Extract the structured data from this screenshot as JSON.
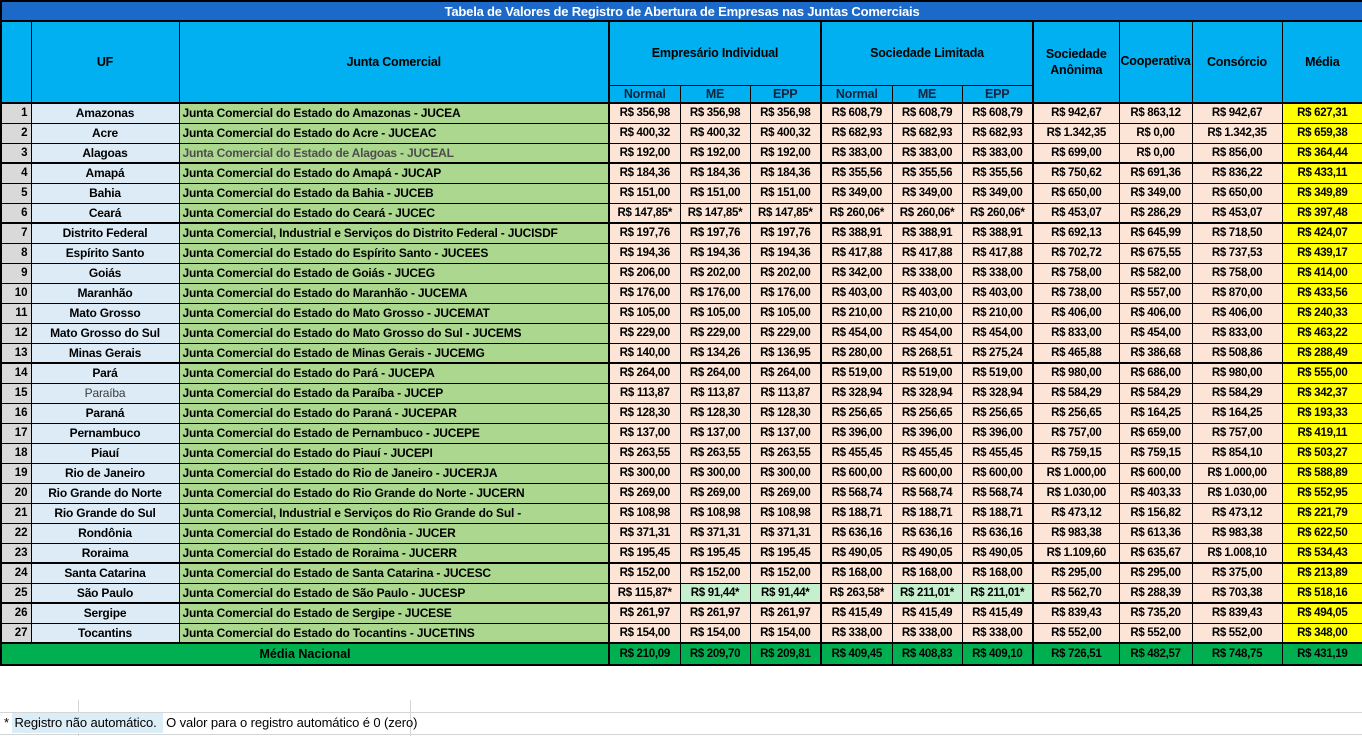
{
  "title": "Tabela de Valores de Registro de Abertura de Empresas nas Juntas Comerciais",
  "colors": {
    "title_bg": "#1b69c8",
    "header_bg": "#00b0f0",
    "rownum_bg": "#d9d9d9",
    "uf_bg": "#ddebf7",
    "junta_bg": "#acd78f",
    "value_bg": "#fce4d6",
    "media_bg": "#ffff00",
    "sp_green_bg": "#c6efce",
    "national_bg": "#00b050",
    "footnote_highlight_bg": "#dbedf7"
  },
  "table": {
    "headers": {
      "uf": "UF",
      "junta": "Junta Comercial",
      "group_empresario_individual": "Empresário Individual",
      "group_sociedade_limitada": "Sociedade Limitada",
      "sub_normal": "Normal",
      "sub_me": "ME",
      "sub_epp": "EPP",
      "sociedade_anonima": "Sociedade Anônima",
      "cooperativa": "Cooperativa",
      "consorcio": "Consórcio",
      "media": "Média"
    },
    "rows": [
      {
        "n": "1",
        "uf": "Amazonas",
        "junta": "Junta Comercial do Estado do Amazonas - JUCEA",
        "values": [
          "R$ 356,98",
          "R$ 356,98",
          "R$ 356,98",
          "R$ 608,79",
          "R$ 608,79",
          "R$ 608,79",
          "R$ 942,67",
          "R$ 863,12",
          "R$ 942,67",
          "R$ 627,31"
        ]
      },
      {
        "n": "2",
        "uf": "Acre",
        "junta": "Junta Comercial do Estado do Acre - JUCEAC",
        "values": [
          "R$ 400,32",
          "R$ 400,32",
          "R$ 400,32",
          "R$ 682,93",
          "R$ 682,93",
          "R$ 682,93",
          "R$ 1.342,35",
          "R$ 0,00",
          "R$ 1.342,35",
          "R$ 659,38"
        ]
      },
      {
        "n": "3",
        "uf": "Alagoas",
        "junta": "Junta Comercial do Estado de Alagoas - JUCEAL",
        "junta_muted": true,
        "thick": true,
        "values": [
          "R$ 192,00",
          "R$ 192,00",
          "R$ 192,00",
          "R$ 383,00",
          "R$ 383,00",
          "R$ 383,00",
          "R$ 699,00",
          "R$ 0,00",
          "R$ 856,00",
          "R$ 364,44"
        ]
      },
      {
        "n": "4",
        "uf": "Amapá",
        "junta": "Junta Comercial do Estado do Amapá - JUCAP",
        "values": [
          "R$ 184,36",
          "R$ 184,36",
          "R$ 184,36",
          "R$ 355,56",
          "R$ 355,56",
          "R$ 355,56",
          "R$ 750,62",
          "R$ 691,36",
          "R$ 836,22",
          "R$ 433,11"
        ]
      },
      {
        "n": "5",
        "uf": "Bahia",
        "junta": "Junta Comercial do Estado da Bahia - JUCEB",
        "values": [
          "R$ 151,00",
          "R$ 151,00",
          "R$ 151,00",
          "R$ 349,00",
          "R$ 349,00",
          "R$ 349,00",
          "R$ 650,00",
          "R$ 349,00",
          "R$ 650,00",
          "R$ 349,89"
        ]
      },
      {
        "n": "6",
        "uf": "Ceará",
        "junta": "Junta Comercial do Estado do Ceará - JUCEC",
        "thick": true,
        "values": [
          "R$ 147,85*",
          "R$ 147,85*",
          "R$ 147,85*",
          "R$ 260,06*",
          "R$ 260,06*",
          "R$ 260,06*",
          "R$ 453,07",
          "R$ 286,29",
          "R$ 453,07",
          "R$ 397,48"
        ]
      },
      {
        "n": "7",
        "uf": "Distrito Federal",
        "junta": "Junta Comercial, Industrial e Serviços do Distrito Federal - JUCISDF",
        "values": [
          "R$ 197,76",
          "R$ 197,76",
          "R$ 197,76",
          "R$ 388,91",
          "R$ 388,91",
          "R$ 388,91",
          "R$ 692,13",
          "R$ 645,99",
          "R$ 718,50",
          "R$ 424,07"
        ]
      },
      {
        "n": "8",
        "uf": "Espírito Santo",
        "junta": "Junta Comercial do Estado do Espírito Santo - JUCEES",
        "values": [
          "R$ 194,36",
          "R$ 194,36",
          "R$ 194,36",
          "R$ 417,88",
          "R$ 417,88",
          "R$ 417,88",
          "R$ 702,72",
          "R$ 675,55",
          "R$ 737,53",
          "R$ 439,17"
        ]
      },
      {
        "n": "9",
        "uf": "Goiás",
        "junta": "Junta Comercial do Estado de Goiás - JUCEG",
        "values": [
          "R$ 206,00",
          "R$ 202,00",
          "R$ 202,00",
          "R$ 342,00",
          "R$ 338,00",
          "R$ 338,00",
          "R$ 758,00",
          "R$ 582,00",
          "R$ 758,00",
          "R$ 414,00"
        ]
      },
      {
        "n": "10",
        "uf": "Maranhão",
        "junta": "Junta Comercial do Estado do Maranhão - JUCEMA",
        "values": [
          "R$ 176,00",
          "R$ 176,00",
          "R$ 176,00",
          "R$ 403,00",
          "R$ 403,00",
          "R$ 403,00",
          "R$ 738,00",
          "R$ 557,00",
          "R$ 870,00",
          "R$ 433,56"
        ]
      },
      {
        "n": "11",
        "uf": "Mato Grosso",
        "junta": "Junta Comercial do Estado do Mato Grosso - JUCEMAT",
        "values": [
          "R$ 105,00",
          "R$ 105,00",
          "R$ 105,00",
          "R$ 210,00",
          "R$ 210,00",
          "R$ 210,00",
          "R$ 406,00",
          "R$ 406,00",
          "R$ 406,00",
          "R$ 240,33"
        ]
      },
      {
        "n": "12",
        "uf": "Mato Grosso do Sul",
        "junta": "Junta Comercial do Estado do Mato Grosso do Sul - JUCEMS",
        "values": [
          "R$ 229,00",
          "R$ 229,00",
          "R$ 229,00",
          "R$ 454,00",
          "R$ 454,00",
          "R$ 454,00",
          "R$ 833,00",
          "R$ 454,00",
          "R$ 833,00",
          "R$ 463,22"
        ]
      },
      {
        "n": "13",
        "uf": "Minas Gerais",
        "junta": "Junta Comercial do Estado de Minas Gerais - JUCEMG",
        "thick": true,
        "values": [
          "R$ 140,00",
          "R$ 134,26",
          "R$ 136,95",
          "R$ 280,00",
          "R$ 268,51",
          "R$ 275,24",
          "R$ 465,88",
          "R$ 386,68",
          "R$ 508,86",
          "R$ 288,49"
        ]
      },
      {
        "n": "14",
        "uf": "Pará",
        "junta": "Junta Comercial do Estado do Pará - JUCEPA",
        "values": [
          "R$ 264,00",
          "R$ 264,00",
          "R$ 264,00",
          "R$ 519,00",
          "R$ 519,00",
          "R$ 519,00",
          "R$ 980,00",
          "R$ 686,00",
          "R$ 980,00",
          "R$ 555,00"
        ]
      },
      {
        "n": "15",
        "uf": "Paraíba",
        "junta": "Junta Comercial do Estado da Paraíba - JUCEP",
        "uf_muted": true,
        "values": [
          "R$ 113,87",
          "R$ 113,87",
          "R$ 113,87",
          "R$ 328,94",
          "R$ 328,94",
          "R$ 328,94",
          "R$ 584,29",
          "R$ 584,29",
          "R$ 584,29",
          "R$ 342,37"
        ]
      },
      {
        "n": "16",
        "uf": "Paraná",
        "junta": "Junta Comercial do Estado do Paraná - JUCEPAR",
        "values": [
          "R$ 128,30",
          "R$ 128,30",
          "R$ 128,30",
          "R$ 256,65",
          "R$ 256,65",
          "R$ 256,65",
          "R$ 256,65",
          "R$ 164,25",
          "R$ 164,25",
          "R$ 193,33"
        ]
      },
      {
        "n": "17",
        "uf": "Pernambuco",
        "junta": "Junta Comercial do Estado de Pernambuco - JUCEPE",
        "values": [
          "R$ 137,00",
          "R$ 137,00",
          "R$ 137,00",
          "R$ 396,00",
          "R$ 396,00",
          "R$ 396,00",
          "R$ 757,00",
          "R$ 659,00",
          "R$ 757,00",
          "R$ 419,11"
        ]
      },
      {
        "n": "18",
        "uf": "Piauí",
        "junta": "Junta Comercial do Estado do Piauí - JUCEPI",
        "values": [
          "R$ 263,55",
          "R$ 263,55",
          "R$ 263,55",
          "R$ 455,45",
          "R$ 455,45",
          "R$ 455,45",
          "R$ 759,15",
          "R$ 759,15",
          "R$ 854,10",
          "R$ 503,27"
        ]
      },
      {
        "n": "19",
        "uf": "Rio de Janeiro",
        "junta": "Junta Comercial do Estado do Rio de Janeiro - JUCERJA",
        "values": [
          "R$ 300,00",
          "R$ 300,00",
          "R$ 300,00",
          "R$ 600,00",
          "R$ 600,00",
          "R$ 600,00",
          "R$ 1.000,00",
          "R$ 600,00",
          "R$ 1.000,00",
          "R$ 588,89"
        ]
      },
      {
        "n": "20",
        "uf": "Rio Grande do Norte",
        "junta": "Junta Comercial do Estado do Rio Grande do Norte - JUCERN",
        "values": [
          "R$ 269,00",
          "R$ 269,00",
          "R$ 269,00",
          "R$ 568,74",
          "R$ 568,74",
          "R$ 568,74",
          "R$ 1.030,00",
          "R$ 403,33",
          "R$ 1.030,00",
          "R$ 552,95"
        ]
      },
      {
        "n": "21",
        "uf": "Rio Grande do Sul",
        "junta": "Junta Comercial, Industrial e Serviços do Rio Grande do Sul -",
        "values": [
          "R$ 108,98",
          "R$ 108,98",
          "R$ 108,98",
          "R$ 188,71",
          "R$ 188,71",
          "R$ 188,71",
          "R$ 473,12",
          "R$ 156,82",
          "R$ 473,12",
          "R$ 221,79"
        ]
      },
      {
        "n": "22",
        "uf": "Rondônia",
        "junta": "Junta Comercial do Estado de Rondônia - JUCER",
        "values": [
          "R$ 371,31",
          "R$ 371,31",
          "R$ 371,31",
          "R$ 636,16",
          "R$ 636,16",
          "R$ 636,16",
          "R$ 983,38",
          "R$ 613,36",
          "R$ 983,38",
          "R$ 622,50"
        ]
      },
      {
        "n": "23",
        "uf": "Roraima",
        "junta": "Junta Comercial do Estado de Roraima - JUCERR",
        "thick": true,
        "values": [
          "R$ 195,45",
          "R$ 195,45",
          "R$ 195,45",
          "R$ 490,05",
          "R$ 490,05",
          "R$ 490,05",
          "R$ 1.109,60",
          "R$ 635,67",
          "R$ 1.008,10",
          "R$ 534,43"
        ]
      },
      {
        "n": "24",
        "uf": "Santa Catarina",
        "junta": "Junta Comercial do Estado de Santa Catarina - JUCESC",
        "values": [
          "R$ 152,00",
          "R$ 152,00",
          "R$ 152,00",
          "R$ 168,00",
          "R$ 168,00",
          "R$ 168,00",
          "R$ 295,00",
          "R$ 295,00",
          "R$ 375,00",
          "R$ 213,89"
        ]
      },
      {
        "n": "25",
        "uf": "São Paulo",
        "junta": "Junta Comercial do Estado de São Paulo - JUCESP",
        "thick": true,
        "green": [
          1,
          2,
          4,
          5
        ],
        "values": [
          "R$ 115,87*",
          "R$ 91,44*",
          "R$ 91,44*",
          "R$ 263,58*",
          "R$ 211,01*",
          "R$ 211,01*",
          "R$ 562,70",
          "R$ 288,39",
          "R$ 703,38",
          "R$ 518,16"
        ]
      },
      {
        "n": "26",
        "uf": "Sergipe",
        "junta": "Junta Comercial do Estado de Sergipe - JUCESE",
        "values": [
          "R$ 261,97",
          "R$ 261,97",
          "R$ 261,97",
          "R$ 415,49",
          "R$ 415,49",
          "R$ 415,49",
          "R$ 839,43",
          "R$ 735,20",
          "R$ 839,43",
          "R$ 494,05"
        ]
      },
      {
        "n": "27",
        "uf": "Tocantins",
        "junta": "Junta Comercial do Estado do Tocantins - JUCETINS",
        "values": [
          "R$ 154,00",
          "R$ 154,00",
          "R$ 154,00",
          "R$ 338,00",
          "R$ 338,00",
          "R$ 338,00",
          "R$ 552,00",
          "R$ 552,00",
          "R$ 552,00",
          "R$ 348,00"
        ]
      }
    ],
    "national_average": {
      "label": "Média Nacional",
      "values": [
        "R$ 210,09",
        "R$ 209,70",
        "R$ 209,81",
        "R$ 409,45",
        "R$ 408,83",
        "R$ 409,10",
        "R$ 726,51",
        "R$ 482,57",
        "R$ 748,75",
        "R$ 431,19"
      ]
    }
  },
  "footnote": {
    "marker": "* ",
    "highlighted": "Registro não automático.",
    "rest": " O valor para o registro automático é 0 (zero)"
  }
}
